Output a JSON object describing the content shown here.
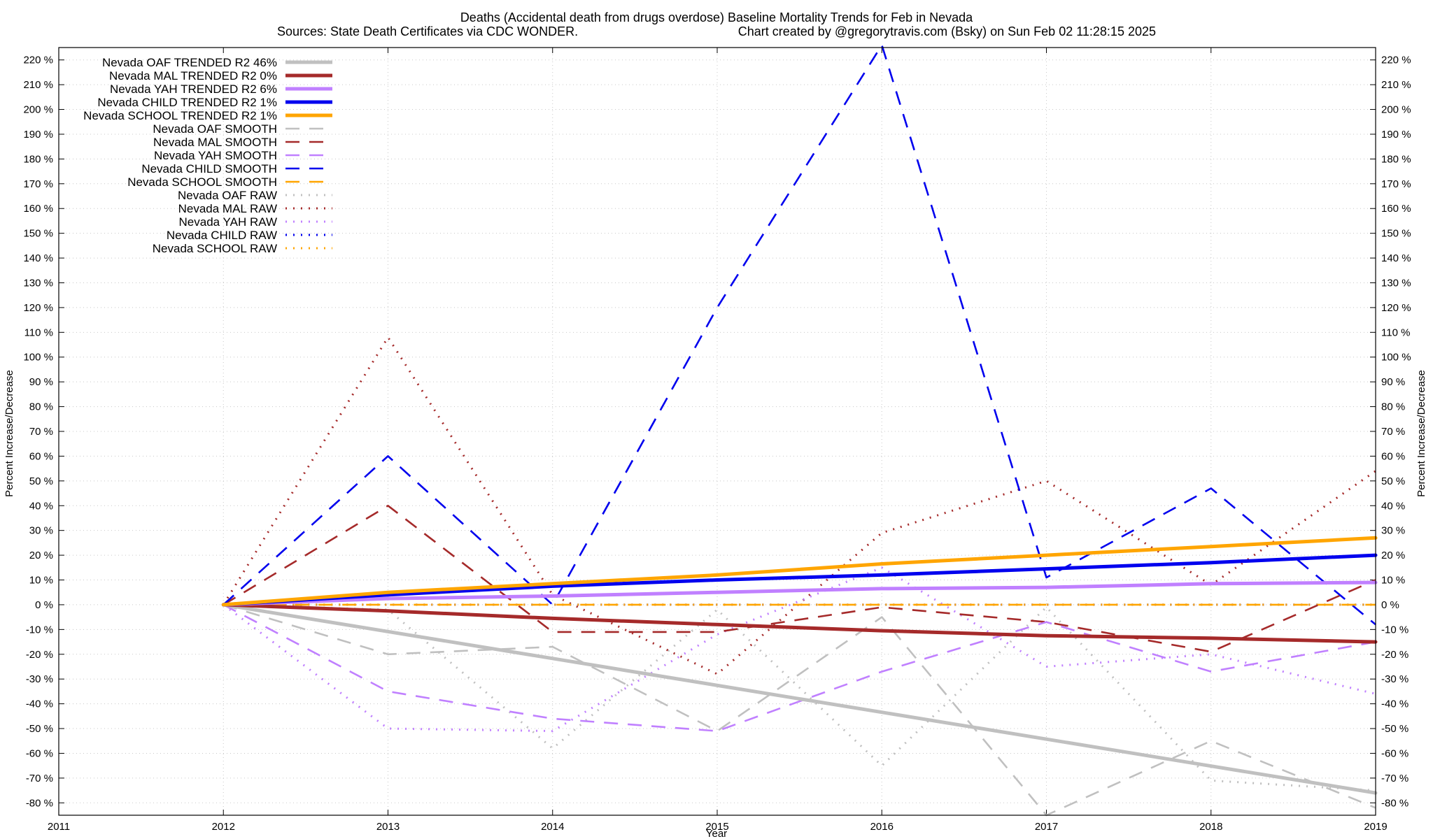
{
  "chart_data": {
    "type": "line",
    "title_line1": "Deaths (Accidental death from drugs overdose)  Baseline Mortality Trends for Feb in Nevada",
    "title_line2_left": "Sources: State Death Certificates via CDC WONDER.",
    "title_line2_right": "Chart created by @gregorytravis.com (Bsky) on Sun Feb 02 11:28:15 2025",
    "xlabel": "Year",
    "ylabel": "Percent Increase/Decrease",
    "ylabel_right": "Percent Increase/Decrease",
    "xlim": [
      2011,
      2019
    ],
    "ylim": [
      -85,
      225
    ],
    "x_ticks": [
      2011,
      2012,
      2013,
      2014,
      2015,
      2016,
      2017,
      2018,
      2019
    ],
    "y_ticks": [
      -80,
      -70,
      -60,
      -50,
      -40,
      -30,
      -20,
      -10,
      0,
      10,
      20,
      30,
      40,
      50,
      60,
      70,
      80,
      90,
      100,
      110,
      120,
      130,
      140,
      150,
      160,
      170,
      180,
      190,
      200,
      210,
      220
    ],
    "y_tick_suffix": " %",
    "grid": true,
    "legend_position": "top-left",
    "series": [
      {
        "name": "Nevada OAF TRENDED R2  46%",
        "style": "solid",
        "color": "#c0c0c0",
        "x": [
          2012,
          2019
        ],
        "values": [
          0,
          -76
        ]
      },
      {
        "name": "Nevada MAL TRENDED R2   0%",
        "style": "solid",
        "color": "#a52a2a",
        "x": [
          2012,
          2013,
          2014,
          2015,
          2016,
          2017,
          2018,
          2019
        ],
        "values": [
          0,
          -2.5,
          -5.5,
          -8,
          -10.5,
          -12.5,
          -13.5,
          -15
        ]
      },
      {
        "name": "Nevada YAH TRENDED R2   6%",
        "style": "solid",
        "color": "#c080ff",
        "x": [
          2012,
          2013,
          2014,
          2015,
          2016,
          2017,
          2018,
          2019
        ],
        "values": [
          0,
          2.5,
          3.5,
          5,
          6.5,
          7,
          8.5,
          9
        ]
      },
      {
        "name": "Nevada CHILD TRENDED R2   1%",
        "style": "solid",
        "color": "#0000ee",
        "x": [
          2012,
          2013,
          2014,
          2015,
          2016,
          2017,
          2018,
          2019
        ],
        "values": [
          0,
          4,
          7.5,
          10,
          12,
          14.5,
          17,
          20
        ]
      },
      {
        "name": "Nevada SCHOOL TRENDED R2   1%",
        "style": "solid",
        "color": "#ffa500",
        "x": [
          2012,
          2013,
          2014,
          2015,
          2016,
          2017,
          2018,
          2019
        ],
        "values": [
          0,
          5,
          8.5,
          12,
          16.5,
          20,
          23.5,
          27
        ]
      },
      {
        "name": "Nevada OAF SMOOTH",
        "style": "dashed",
        "color": "#c0c0c0",
        "x": [
          2012,
          2013,
          2014,
          2015,
          2016,
          2017,
          2018,
          2019
        ],
        "values": [
          0,
          -20,
          -17,
          -51,
          -5,
          -85,
          -55,
          -82
        ]
      },
      {
        "name": "Nevada MAL SMOOTH",
        "style": "dashed",
        "color": "#a52a2a",
        "x": [
          2012,
          2013,
          2014,
          2015,
          2016,
          2017,
          2018,
          2019
        ],
        "values": [
          0,
          40,
          -11,
          -11,
          -1,
          -7,
          -19,
          10
        ]
      },
      {
        "name": "Nevada YAH SMOOTH",
        "style": "dashed",
        "color": "#c080ff",
        "x": [
          2012,
          2013,
          2014,
          2015,
          2016,
          2017,
          2018,
          2019
        ],
        "values": [
          0,
          -35,
          -46,
          -51,
          -27,
          -7,
          -27,
          -15
        ]
      },
      {
        "name": "Nevada CHILD SMOOTH",
        "style": "dashed",
        "color": "#0000ee",
        "x": [
          2012,
          2013,
          2014,
          2015,
          2016,
          2017,
          2018,
          2019
        ],
        "values": [
          0,
          60,
          0,
          120,
          226,
          11,
          47,
          -8
        ]
      },
      {
        "name": "Nevada SCHOOL SMOOTH",
        "style": "dashed",
        "color": "#ffa500",
        "x": [
          2012,
          2013,
          2014,
          2015,
          2016,
          2017,
          2018,
          2019
        ],
        "values": [
          0,
          0,
          0,
          0,
          0,
          0,
          0,
          0
        ]
      },
      {
        "name": "Nevada OAF RAW",
        "style": "dotted",
        "color": "#c0c0c0",
        "x": [
          2012,
          2013,
          2014,
          2015,
          2016,
          2017,
          2018,
          2019
        ],
        "values": [
          0,
          -2,
          -58,
          -2,
          -65,
          -1,
          -71,
          -75
        ]
      },
      {
        "name": "Nevada MAL RAW",
        "style": "dotted",
        "color": "#a52a2a",
        "x": [
          2012,
          2013,
          2014,
          2015,
          2016,
          2017,
          2018,
          2019
        ],
        "values": [
          0,
          108,
          4,
          -28,
          29,
          50,
          8,
          54
        ]
      },
      {
        "name": "Nevada YAH RAW",
        "style": "dotted",
        "color": "#c080ff",
        "x": [
          2012,
          2013,
          2014,
          2015,
          2016,
          2017,
          2018,
          2019
        ],
        "values": [
          0,
          -50,
          -51,
          -12,
          15,
          -25,
          -20,
          -36
        ]
      },
      {
        "name": "Nevada CHILD RAW",
        "style": "dotted",
        "color": "#0000ee",
        "x": [
          2012,
          2013,
          2014,
          2015,
          2016,
          2017,
          2018,
          2019
        ],
        "values": [
          0,
          0,
          0,
          0,
          0,
          0,
          0,
          0
        ]
      },
      {
        "name": "Nevada SCHOOL RAW",
        "style": "dotted",
        "color": "#ffa500",
        "x": [
          2012,
          2013,
          2014,
          2015,
          2016,
          2017,
          2018,
          2019
        ],
        "values": [
          0,
          0,
          0,
          0,
          0,
          0,
          0,
          0
        ]
      }
    ]
  }
}
